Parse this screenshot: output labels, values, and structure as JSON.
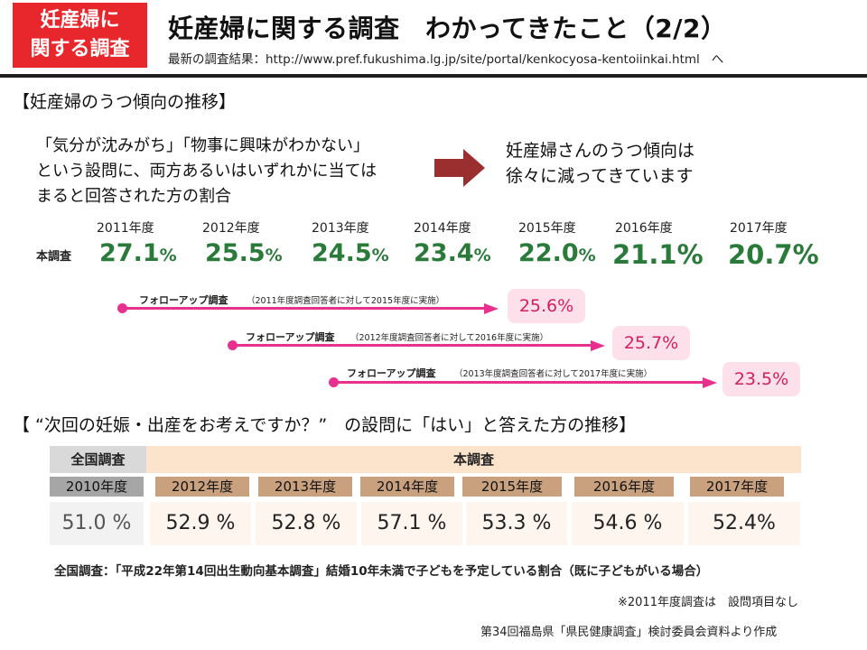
{
  "header": {
    "badge_line1": "妊産婦に",
    "badge_line2": "関する調査",
    "title": "妊産婦に関する調査　わかってきたこと（2/2）",
    "url_prefix": "最新の調査結果：",
    "url": "http://www.pref.fukushima.lg.jp/site/portal/kenkocyosa-kentoiinkai.html",
    "url_suffix": "へ"
  },
  "section1": {
    "title": "【妊産婦のうつ傾向の推移】",
    "question_lines": [
      "「気分が沈みがち」「物事に興味がわかない」",
      "という設問に、両方あるいはいずれかに当ては",
      "まると回答された方の割合"
    ],
    "result_lines": [
      "妊産婦さんのうつ傾向は",
      "徐々に減ってきています"
    ],
    "row_label": "本調査",
    "years": [
      "2011年度",
      "2012年度",
      "2013年度",
      "2014年度",
      "2015年度",
      "2016年度",
      "2017年度"
    ],
    "values": [
      "27.1",
      "25.5",
      "24.5",
      "23.4",
      "22.0",
      "21.1",
      "20.7"
    ],
    "unit": "%",
    "followups": [
      {
        "label": "フォローアップ調査",
        "note": "（2011年度調査回答者に対して2015年度に実施）",
        "value": "25.6%"
      },
      {
        "label": "フォローアップ調査",
        "note": "（2012年度調査回答者に対して2016年度に実施）",
        "value": "25.7%"
      },
      {
        "label": "フォローアップ調査",
        "note": "（2013年度調査回答者に対して2017年度に実施）",
        "value": "23.5%"
      }
    ]
  },
  "section2": {
    "title": "【 “次回の妊娠・出産をお考えですか？”　の設問に「はい」と答えた方の推移】",
    "national_header": "全国調査",
    "main_header": "本調査",
    "national_year": "2010年度",
    "national_value": "51.0 %",
    "years": [
      "2012年度",
      "2013年度",
      "2014年度",
      "2015年度",
      "2016年度",
      "2017年度"
    ],
    "values": [
      "52.9 %",
      "52.8 %",
      "57.1 %",
      "53.3 %",
      "54.6 %",
      "52.4%"
    ],
    "note": "全国調査：「平成22年第14回出生動向基本調査」結婚10年未満で子どもを予定している割合（既に子どもがいる場合）"
  },
  "footnote": "※2011年度調査は　設問項目なし",
  "source": "第34回福島県「県民健康調査」検討委員会資料より作成",
  "colors": {
    "badge": "#e8272c",
    "green_values": "#2a7a3a",
    "followup_pink": "#e8318f",
    "followup_box": "#fde0ea",
    "table_brown": "#c9a17e",
    "table_gray": "#a6a6a6"
  }
}
